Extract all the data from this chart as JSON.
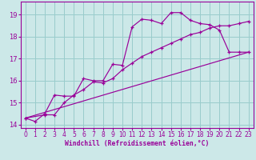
{
  "bg_color": "#cce8e8",
  "grid_color": "#99cccc",
  "line_color": "#990099",
  "xlabel": "Windchill (Refroidissement éolien,°C)",
  "xlim": [
    -0.5,
    23.5
  ],
  "ylim": [
    13.85,
    19.6
  ],
  "xticks": [
    0,
    1,
    2,
    3,
    4,
    5,
    6,
    7,
    8,
    9,
    10,
    11,
    12,
    13,
    14,
    15,
    16,
    17,
    18,
    19,
    20,
    21,
    22,
    23
  ],
  "yticks": [
    14,
    15,
    16,
    17,
    18,
    19
  ],
  "line1_x": [
    0,
    1,
    2,
    3,
    4,
    5,
    6,
    7,
    8,
    9,
    10,
    11,
    12,
    13,
    14,
    15,
    16,
    17,
    18,
    19,
    20,
    21,
    22,
    23
  ],
  "line1_y": [
    14.3,
    14.15,
    14.5,
    15.35,
    15.3,
    15.3,
    16.1,
    16.0,
    16.0,
    16.75,
    16.7,
    18.45,
    18.8,
    18.75,
    18.6,
    19.1,
    19.1,
    18.75,
    18.6,
    18.55,
    18.3,
    17.3,
    17.3,
    17.3
  ],
  "line2_x": [
    0,
    2,
    3,
    4,
    5,
    6,
    7,
    8,
    9,
    10,
    11,
    12,
    13,
    14,
    15,
    16,
    17,
    18,
    19,
    20,
    21,
    22,
    23
  ],
  "line2_y": [
    14.3,
    14.45,
    14.45,
    15.0,
    15.35,
    15.6,
    15.95,
    15.9,
    16.1,
    16.5,
    16.8,
    17.1,
    17.3,
    17.5,
    17.7,
    17.9,
    18.1,
    18.2,
    18.4,
    18.5,
    18.5,
    18.6,
    18.7
  ],
  "line3_x": [
    0,
    23
  ],
  "line3_y": [
    14.3,
    17.3
  ]
}
